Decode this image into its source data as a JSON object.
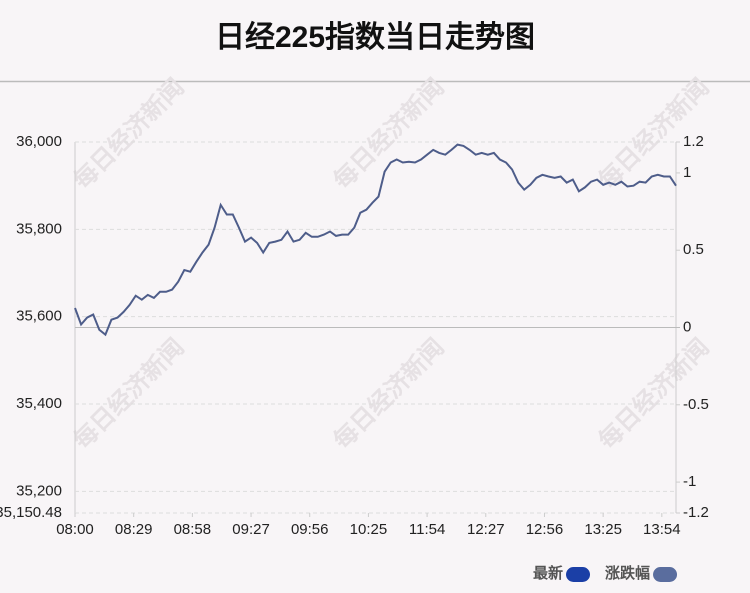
{
  "chart_data": {
    "type": "line",
    "title": "日经225指数当日走势图",
    "watermark": "每日经济新闻",
    "xlim": [
      0,
      297
    ],
    "xticks": [
      {
        "value": 0,
        "label": "08:00"
      },
      {
        "value": 29,
        "label": "08:29"
      },
      {
        "value": 58,
        "label": "08:58"
      },
      {
        "value": 87,
        "label": "09:27"
      },
      {
        "value": 116,
        "label": "09:56"
      },
      {
        "value": 145,
        "label": "10:25"
      },
      {
        "value": 174,
        "label": "11:54"
      },
      {
        "value": 203,
        "label": "12:27"
      },
      {
        "value": 232,
        "label": "12:56"
      },
      {
        "value": 261,
        "label": "13:25"
      },
      {
        "value": 290,
        "label": "13:54"
      }
    ],
    "ylim": [
      35150.48,
      36000
    ],
    "yticks": [
      {
        "value": 35150.48,
        "label": "35,150.48"
      },
      {
        "value": 35200,
        "label": "35,200"
      },
      {
        "value": 35400,
        "label": "35,400"
      },
      {
        "value": 35600,
        "label": "35,600"
      },
      {
        "value": 35800,
        "label": "35,800"
      },
      {
        "value": 36000,
        "label": "36,000"
      }
    ],
    "y2lim": [
      -1.2,
      1.2
    ],
    "y2ticks": [
      -1.2,
      -1,
      -0.5,
      0,
      0.5,
      1,
      1.2
    ],
    "grid": true,
    "legend": [
      {
        "name": "最新",
        "color": "#1b3fa6"
      },
      {
        "name": "涨跌幅",
        "color": "#5a6d9e"
      }
    ],
    "series": [
      {
        "color": "#4e5d8a",
        "x": [
          0,
          3,
          6,
          9,
          12,
          15,
          18,
          21,
          24,
          27,
          30,
          33,
          36,
          39,
          42,
          45,
          48,
          51,
          54,
          57,
          60,
          63,
          66,
          69,
          72,
          75,
          78,
          81,
          84,
          87,
          90,
          93,
          96,
          99,
          102,
          105,
          108,
          111,
          114,
          117,
          120,
          123,
          126,
          129,
          132,
          135,
          138,
          141,
          144,
          147,
          150,
          153,
          156,
          159,
          162,
          165,
          168,
          171,
          174,
          177,
          180,
          183,
          186,
          189,
          192,
          195,
          198,
          201,
          204,
          207,
          210,
          213,
          216,
          219,
          222,
          225,
          228,
          231,
          234,
          237,
          240,
          243,
          246,
          249,
          252,
          255,
          258,
          261,
          264,
          267,
          270,
          273,
          276,
          279,
          282,
          285,
          288,
          291,
          294,
          297
        ],
        "values": [
          35620,
          35582,
          35598,
          35605,
          35570,
          35559,
          35593,
          35598,
          35611,
          35627,
          35648,
          35639,
          35650,
          35643,
          35657,
          35657,
          35662,
          35680,
          35707,
          35703,
          35726,
          35747,
          35765,
          35804,
          35856,
          35834,
          35834,
          35804,
          35772,
          35781,
          35769,
          35747,
          35769,
          35772,
          35776,
          35795,
          35772,
          35776,
          35792,
          35783,
          35783,
          35788,
          35795,
          35785,
          35788,
          35788,
          35804,
          35838,
          35845,
          35861,
          35875,
          35932,
          35953,
          35960,
          35953,
          35955,
          35953,
          35960,
          35971,
          35982,
          35975,
          35971,
          35982,
          35994,
          35991,
          35982,
          35971,
          35975,
          35971,
          35975,
          35960,
          35953,
          35937,
          35907,
          35891,
          35902,
          35918,
          35925,
          35921,
          35918,
          35921,
          35907,
          35914,
          35887,
          35896,
          35909,
          35914,
          35902,
          35907,
          35902,
          35909,
          35898,
          35900,
          35909,
          35907,
          35921,
          35925,
          35921,
          35921,
          35900
        ]
      }
    ]
  }
}
